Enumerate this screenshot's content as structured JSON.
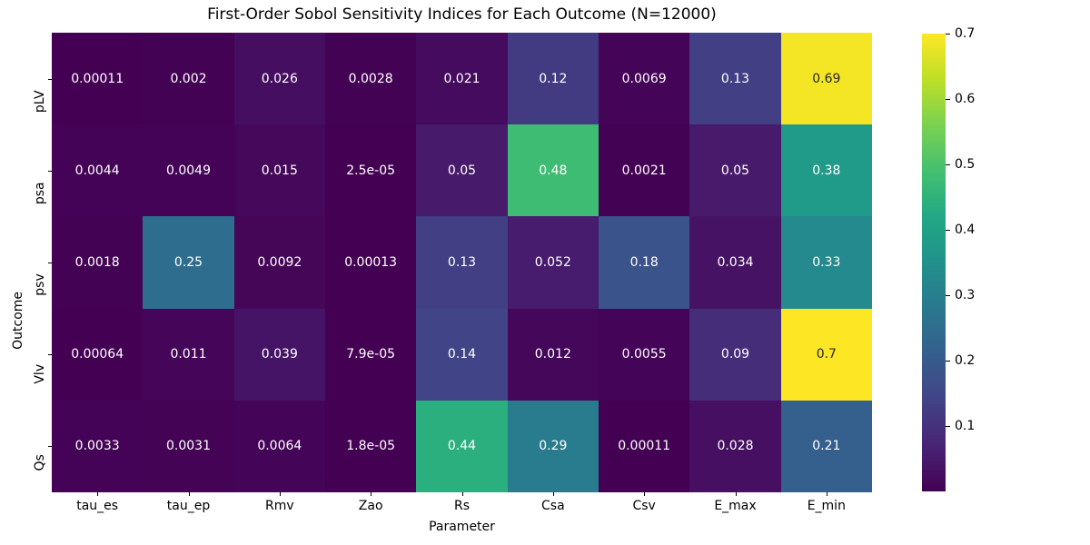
{
  "title": "First-Order Sobol Sensitivity Indices for Each Outcome (N=12000)",
  "chart_data": {
    "type": "heatmap",
    "title": "First-Order Sobol Sensitivity Indices for Each Outcome (N=12000)",
    "xlabel": "Parameter",
    "ylabel": "Outcome",
    "columns": [
      "tau_es",
      "tau_ep",
      "Rmv",
      "Zao",
      "Rs",
      "Csa",
      "Csv",
      "E_max",
      "E_min"
    ],
    "rows": [
      "pLV",
      "psa",
      "psv",
      "Vlv",
      "Qs"
    ],
    "values": [
      [
        "0.00011",
        "0.002",
        "0.026",
        "0.0028",
        "0.021",
        "0.12",
        "0.0069",
        "0.13",
        "0.69"
      ],
      [
        "0.0044",
        "0.0049",
        "0.015",
        "2.5e-05",
        "0.05",
        "0.48",
        "0.0021",
        "0.05",
        "0.38"
      ],
      [
        "0.0018",
        "0.25",
        "0.0092",
        "0.00013",
        "0.13",
        "0.052",
        "0.18",
        "0.034",
        "0.33"
      ],
      [
        "0.00064",
        "0.011",
        "0.039",
        "7.9e-05",
        "0.14",
        "0.012",
        "0.0055",
        "0.09",
        "0.7"
      ],
      [
        "0.0033",
        "0.0031",
        "0.0064",
        "1.8e-05",
        "0.44",
        "0.29",
        "0.00011",
        "0.028",
        "0.21"
      ]
    ],
    "colormap": "viridis",
    "vmin": 1.8e-05,
    "vmax": 0.7,
    "colorbar_ticks": [
      "0.1",
      "0.2",
      "0.3",
      "0.4",
      "0.5",
      "0.6",
      "0.7"
    ],
    "legend_position": "right-colorbar",
    "grid": false,
    "colors": {
      "viridis_stops": [
        "#440154",
        "#482475",
        "#414487",
        "#355f8d",
        "#2a788e",
        "#21918c",
        "#22a884",
        "#44bf70",
        "#7ad151",
        "#bddf26",
        "#fde725"
      ],
      "annotation_light": "#ffffff",
      "annotation_dark": "#262626",
      "axis_text": "#000000"
    }
  }
}
